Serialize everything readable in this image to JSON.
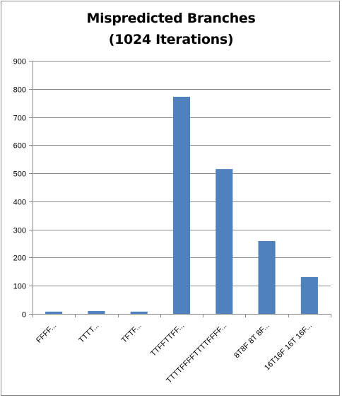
{
  "chart_data": {
    "type": "bar",
    "title_lines": [
      "Mispredicted Branches",
      "(1024 Iterations)"
    ],
    "categories": [
      "FFFF...",
      "TTTT...",
      "TFTF...",
      "TTFFTTFF...",
      "TTTTFFFFTTTTFFFF...",
      "8T8F 8T 8F...",
      "16T16F 16T 16F..."
    ],
    "values": [
      8,
      10,
      8,
      772,
      515,
      259,
      131
    ],
    "ylim": [
      0,
      900
    ],
    "yticks": [
      0,
      100,
      200,
      300,
      400,
      500,
      600,
      700,
      800,
      900
    ],
    "grid": true,
    "legend": "none",
    "bar_color": "#4f81bd"
  }
}
